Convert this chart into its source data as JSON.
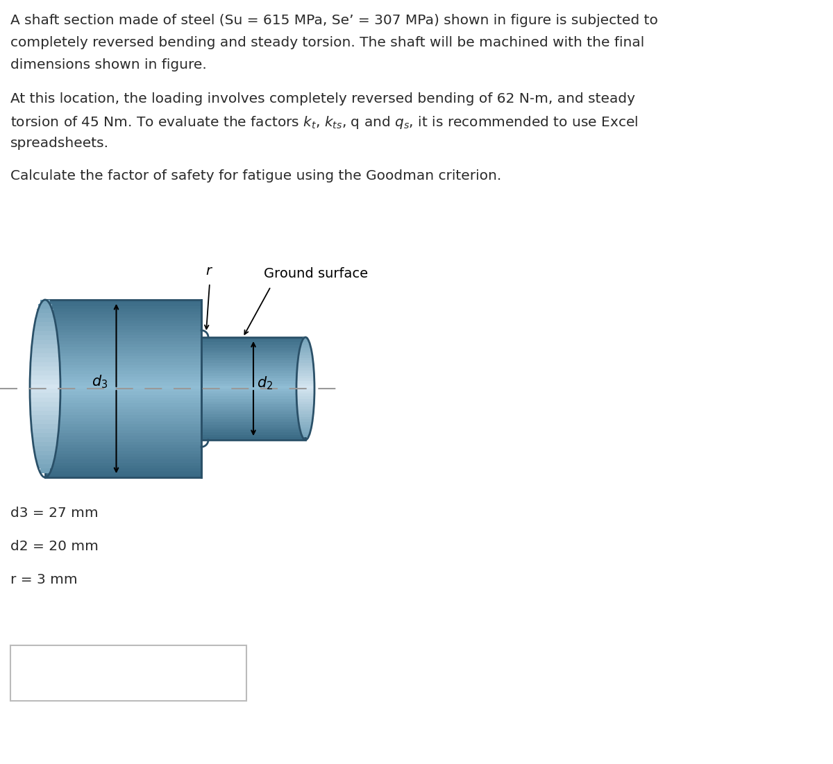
{
  "para1_line1": "A shaft section made of steel (Su = 615 MPa, Se’ = 307 MPa) shown in figure is subjected to",
  "para1_line2": "completely reversed bending and steady torsion. The shaft will be machined with the final",
  "para1_line3": "dimensions shown in figure.",
  "para2_line1": "At this location, the loading involves completely reversed bending of 62 N-m, and steady",
  "para2_line2_plain": "torsion of 45 Nm. To evaluate the factors k",
  "para2_line2_math": "torsion of 45 Nm. To evaluate the factors $k_t$, $k_{ts}$, q and $q_s$, it is recommended to use Excel",
  "para2_line3": "spreadsheets.",
  "para3": "Calculate the factor of safety for fatigue using the Goodman criterion.",
  "d3_label": "d3 = 27 mm",
  "d2_label": "d2 = 20 mm",
  "r_label": "r = 3 mm",
  "ground_surface_label": "Ground surface",
  "r_annotation": "r",
  "d3_dim": "$d_3$",
  "d2_dim": "$d_2$",
  "bg_color": "#ffffff",
  "text_color": "#2a2a2a",
  "shaft_mid": "#6a9ab8",
  "shaft_light": "#90bdd4",
  "shaft_dark": "#3a6a85",
  "shaft_edge": "#2a5068",
  "shaft_vlight": "#c5dde8",
  "dash_color": "#999999",
  "box_edge": "#bbbbbb"
}
